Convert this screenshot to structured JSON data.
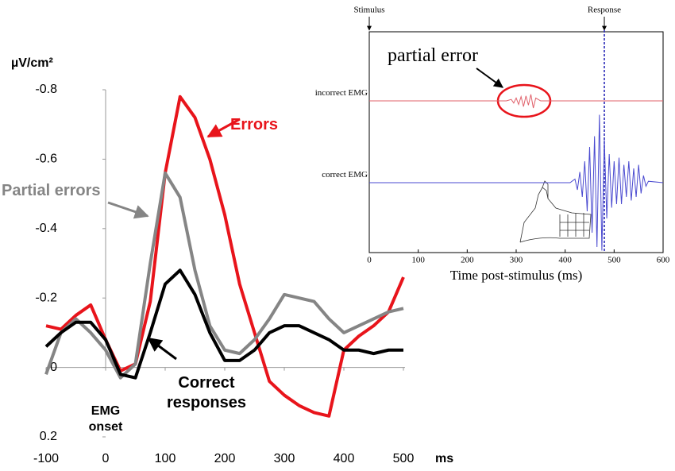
{
  "chart_data": [
    {
      "type": "line",
      "ylabel": "µV/cm²",
      "xlabel": "ms",
      "xlim": [
        -100,
        500
      ],
      "xticks": [
        -100,
        0,
        100,
        200,
        300,
        400,
        500
      ],
      "ylim": [
        0.2,
        -0.8
      ],
      "yticks": [
        -0.8,
        -0.6,
        -0.4,
        -0.2,
        0,
        0.2
      ],
      "x": [
        -100,
        -75,
        -50,
        -25,
        0,
        25,
        50,
        75,
        100,
        125,
        150,
        175,
        200,
        225,
        250,
        275,
        300,
        325,
        350,
        375,
        400,
        425,
        450,
        475,
        500
      ],
      "series": [
        {
          "name": "Errors",
          "color": "#e8141b",
          "values": [
            -0.12,
            -0.11,
            -0.15,
            -0.18,
            -0.08,
            0.01,
            -0.01,
            -0.19,
            -0.56,
            -0.78,
            -0.72,
            -0.6,
            -0.44,
            -0.24,
            -0.1,
            0.04,
            0.08,
            0.11,
            0.13,
            0.14,
            -0.05,
            -0.09,
            -0.12,
            -0.16,
            -0.26
          ]
        },
        {
          "name": "Partial errors",
          "color": "#858585",
          "values": [
            0.02,
            -0.1,
            -0.14,
            -0.1,
            -0.05,
            0.03,
            -0.01,
            -0.3,
            -0.56,
            -0.49,
            -0.28,
            -0.12,
            -0.05,
            -0.04,
            -0.08,
            -0.14,
            -0.21,
            -0.2,
            -0.19,
            -0.14,
            -0.1,
            -0.12,
            -0.14,
            -0.16,
            -0.17
          ]
        },
        {
          "name": "Correct responses",
          "color": "#000000",
          "values": [
            -0.06,
            -0.1,
            -0.13,
            -0.13,
            -0.08,
            0.02,
            0.03,
            -0.1,
            -0.24,
            -0.28,
            -0.21,
            -0.1,
            -0.02,
            -0.02,
            -0.05,
            -0.1,
            -0.12,
            -0.12,
            -0.1,
            -0.08,
            -0.05,
            -0.05,
            -0.04,
            -0.05,
            -0.05
          ]
        }
      ],
      "annotations": [
        "EMG onset"
      ]
    },
    {
      "type": "line",
      "xlabel": "Time post-stimulus (ms)",
      "xlim": [
        0,
        600
      ],
      "xticks": [
        0,
        100,
        200,
        300,
        400,
        500,
        600
      ],
      "ylim": [
        -1,
        1
      ],
      "markers": [
        {
          "label": "Stimulus",
          "x": 0
        },
        {
          "label": "Response",
          "x": 480
        }
      ],
      "series": [
        {
          "name": "incorrect EMG",
          "color": "#e0606a",
          "x": [
            0,
            280,
            290,
            295,
            300,
            305,
            310,
            315,
            320,
            325,
            330,
            335,
            340,
            350,
            600
          ],
          "values": [
            0,
            0,
            0.02,
            -0.03,
            0.04,
            -0.05,
            0.06,
            -0.08,
            0.07,
            -0.06,
            0.09,
            -0.1,
            0.04,
            0,
            0
          ]
        },
        {
          "name": "correct EMG",
          "color": "#4a4ad0",
          "x": [
            0,
            410,
            420,
            425,
            430,
            435,
            440,
            445,
            450,
            455,
            460,
            465,
            470,
            475,
            480,
            485,
            490,
            495,
            500,
            505,
            510,
            515,
            520,
            525,
            530,
            535,
            540,
            545,
            550,
            555,
            560,
            565,
            570,
            600
          ],
          "values": [
            0,
            0,
            0.05,
            -0.1,
            0.15,
            -0.2,
            0.3,
            -0.4,
            0.5,
            -0.7,
            0.65,
            -0.9,
            0.95,
            -0.95,
            0.6,
            -0.5,
            0.4,
            -0.35,
            0.3,
            -0.3,
            0.35,
            -0.3,
            0.25,
            -0.2,
            0.3,
            -0.25,
            0.2,
            -0.2,
            0.25,
            -0.15,
            0.1,
            -0.05,
            0.02,
            0
          ]
        }
      ],
      "annotations": [
        "partial error"
      ]
    }
  ]
}
